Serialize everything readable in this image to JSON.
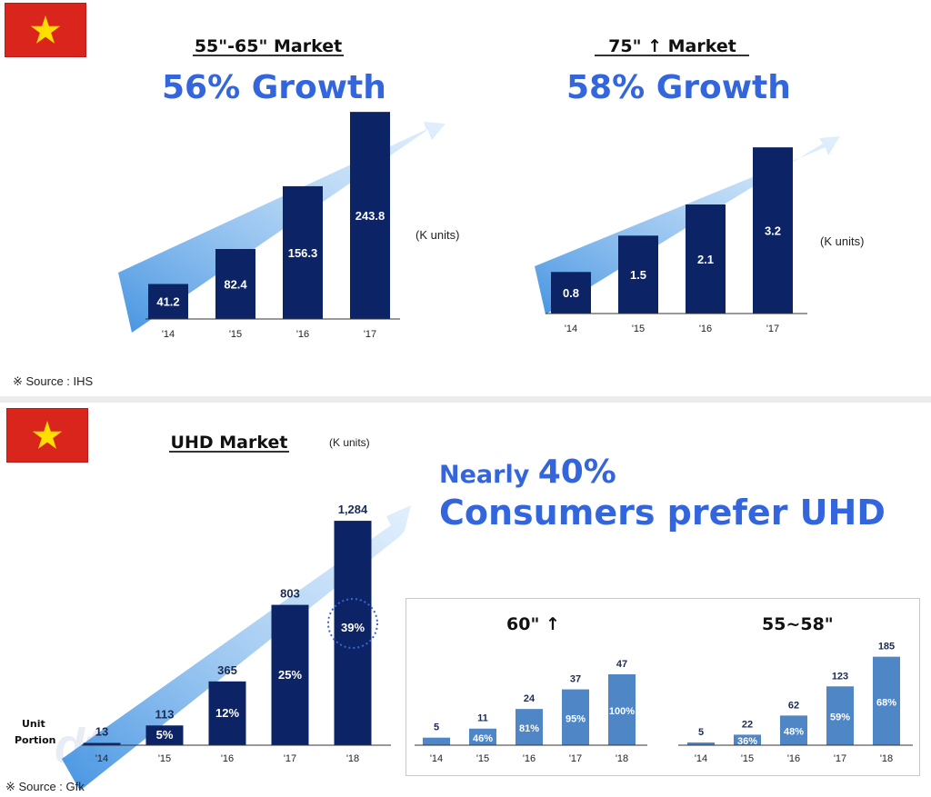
{
  "colors": {
    "bar_dark": "#0c2465",
    "bar_light": "#4f86c6",
    "headline": "#3366dd",
    "flag_red": "#da251d",
    "flag_star": "#ffde00"
  },
  "top": {
    "flag_icon": "vietnam-flag-icon",
    "source": "※ Source : IHS"
  },
  "bottom": {
    "flag_icon": "vietnam-flag-icon",
    "source": "※ Source : Gfk",
    "headline_line1_a": "Nearly ",
    "headline_line1_b": "40%",
    "headline_line2": "Consumers prefer UHD",
    "row_label_unit": "Unit",
    "row_label_portion": "Portion",
    "watermark": "dt"
  },
  "chart_data": [
    {
      "type": "bar",
      "title": "55\"-65\" Market",
      "headline": "56% Growth",
      "unit": "(K units)",
      "categories": [
        "'14",
        "'15",
        "'16",
        "'17"
      ],
      "values": [
        41.2,
        82.4,
        156.3,
        243.8
      ],
      "ylim": [
        0,
        260
      ]
    },
    {
      "type": "bar",
      "title": "75\" ↑ Market",
      "headline": "58% Growth",
      "unit": "(K units)",
      "categories": [
        "'14",
        "'15",
        "'16",
        "'17"
      ],
      "values": [
        0.8,
        1.5,
        2.1,
        3.2
      ],
      "ylim": [
        0,
        3.5
      ]
    },
    {
      "type": "bar",
      "title": "UHD Market",
      "unit": "(K units)",
      "categories": [
        "'14",
        "'15",
        "'16",
        "'17",
        "'18"
      ],
      "values": [
        13,
        113,
        365,
        803,
        1284
      ],
      "value_labels": [
        "13",
        "113",
        "365",
        "803",
        "1,284"
      ],
      "portion_labels": [
        "",
        "5%",
        "12%",
        "25%",
        "39%"
      ],
      "ylim": [
        0,
        1300
      ]
    },
    {
      "type": "bar",
      "title": "60\" ↑",
      "categories": [
        "'14",
        "'15",
        "'16",
        "'17",
        "'18"
      ],
      "values": [
        5,
        11,
        24,
        37,
        47
      ],
      "portion_labels": [
        "",
        "46%",
        "81%",
        "95%",
        "100%"
      ],
      "ylim": [
        0,
        50
      ]
    },
    {
      "type": "bar",
      "title": "55~58\"",
      "categories": [
        "'14",
        "'15",
        "'16",
        "'17",
        "'18"
      ],
      "values": [
        5,
        22,
        62,
        123,
        185
      ],
      "portion_labels": [
        "",
        "36%",
        "48%",
        "59%",
        "68%"
      ],
      "ylim": [
        0,
        190
      ]
    }
  ]
}
